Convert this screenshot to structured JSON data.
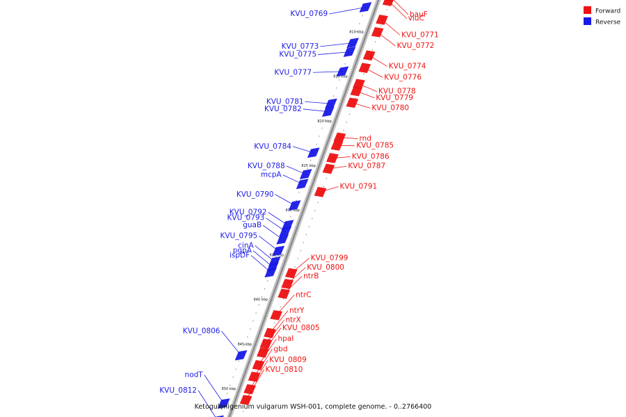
{
  "caption": "Ketogulonigenium vulgarum WSH-001, complete genome. - 0..2766400",
  "colors": {
    "forward": "#ee1111",
    "reverse": "#1a1ae6",
    "backbone": "#8a8a8a"
  },
  "legend": [
    {
      "label": "Forward",
      "color": "#ee1111"
    },
    {
      "label": "Reverse",
      "color": "#1a1ae6"
    }
  ],
  "ticks": [
    "810 kbp",
    "815 kbp",
    "820 kbp",
    "825 kbp",
    "830 kbp",
    "835 kbp",
    "840 kbp",
    "845 kbp",
    "850 kbp"
  ],
  "forward_genes": [
    {
      "name": "bauF",
      "pos": 0.0
    },
    {
      "name": "viuC",
      "pos": 0.5
    },
    {
      "name": "KVU_0771",
      "pos": 2.6
    },
    {
      "name": "KVU_0772",
      "pos": 4.0
    },
    {
      "name": "KVU_0774",
      "pos": 6.6
    },
    {
      "name": "KVU_0776",
      "pos": 8.0
    },
    {
      "name": "KVU_0778",
      "pos": 9.8
    },
    {
      "name": "KVU_0779",
      "pos": 10.6
    },
    {
      "name": "KVU_0780",
      "pos": 11.9
    },
    {
      "name": "rnd",
      "pos": 15.8
    },
    {
      "name": "KVU_0785",
      "pos": 16.7
    },
    {
      "name": "KVU_0786",
      "pos": 18.1
    },
    {
      "name": "KVU_0787",
      "pos": 19.3
    },
    {
      "name": "KVU_0791",
      "pos": 21.9
    },
    {
      "name": "KVU_0799",
      "pos": 31.0
    },
    {
      "name": "KVU_0800",
      "pos": 32.2
    },
    {
      "name": "ntrB",
      "pos": 33.3
    },
    {
      "name": "ntrC",
      "pos": 35.7
    },
    {
      "name": "ntrY",
      "pos": 37.7
    },
    {
      "name": "ntrX",
      "pos": 38.9
    },
    {
      "name": "KVU_0805",
      "pos": 39.9
    },
    {
      "name": "hpaI",
      "pos": 41.3
    },
    {
      "name": "gbd",
      "pos": 42.6
    },
    {
      "name": "KVU_0809",
      "pos": 44.0
    },
    {
      "name": "KVU_0810",
      "pos": 45.2
    }
  ],
  "reverse_genes": [
    {
      "name": "KVU_0769",
      "pos": 1.2
    },
    {
      "name": "KVU_0773",
      "pos": 5.2
    },
    {
      "name": "KVU_0775",
      "pos": 6.2
    },
    {
      "name": "KVU_0777",
      "pos": 8.4
    },
    {
      "name": "KVU_0781",
      "pos": 12.0
    },
    {
      "name": "KVU_0782",
      "pos": 12.9
    },
    {
      "name": "KVU_0784",
      "pos": 17.5
    },
    {
      "name": "KVU_0788",
      "pos": 19.9
    },
    {
      "name": "mcpA",
      "pos": 21.0
    },
    {
      "name": "KVU_0790",
      "pos": 23.4
    },
    {
      "name": "KVU_0792",
      "pos": 25.6
    },
    {
      "name": "KVU_0793",
      "pos": 26.3
    },
    {
      "name": "guaB",
      "pos": 27.2
    },
    {
      "name": "KVU_0795",
      "pos": 28.5
    },
    {
      "name": "cinA",
      "pos": 29.7
    },
    {
      "name": "pgpA",
      "pos": 30.3
    },
    {
      "name": "ispDF",
      "pos": 30.9
    },
    {
      "name": "KVU_0806",
      "pos": 40.2
    },
    {
      "name": "nodT",
      "pos": 45.6
    },
    {
      "name": "KVU_0812",
      "pos": 47.5
    }
  ]
}
